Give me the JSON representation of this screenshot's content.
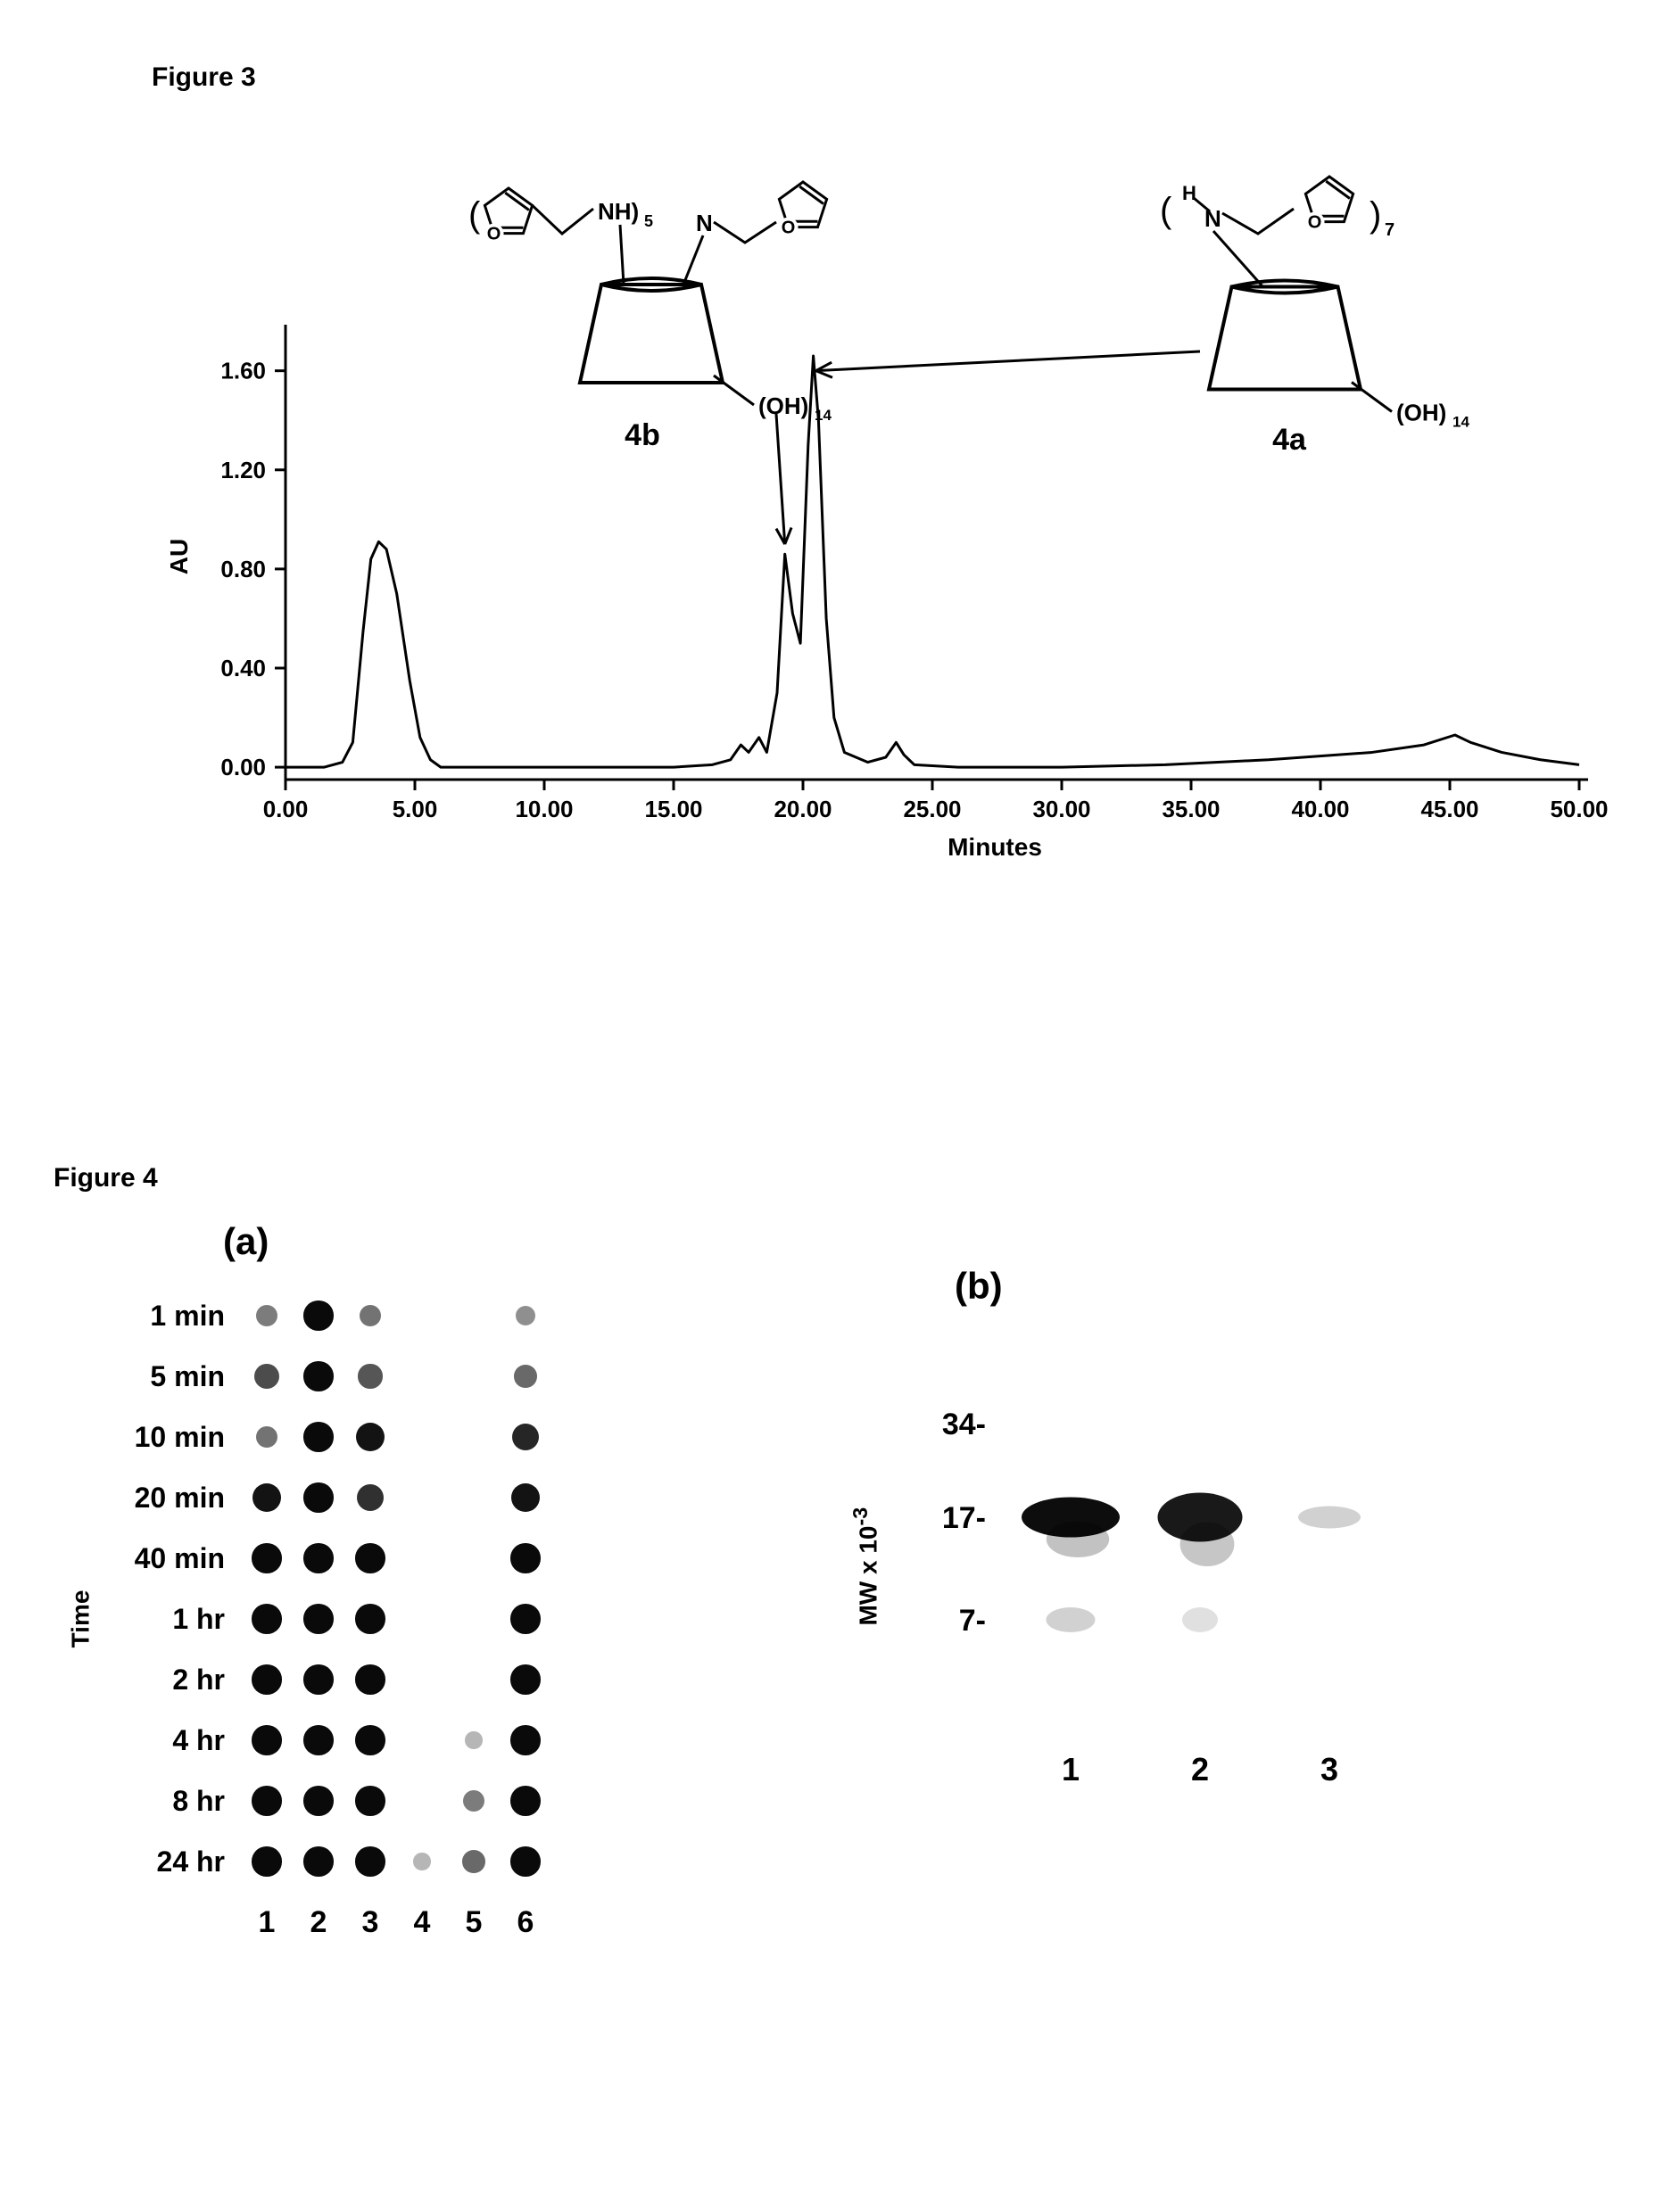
{
  "figure3": {
    "label": "Figure 3",
    "chart": {
      "type": "line",
      "ylabel": "AU",
      "xlabel": "Minutes",
      "xlim": [
        0,
        50
      ],
      "ylim": [
        -0.05,
        1.75
      ],
      "xticks": [
        "0.00",
        "5.00",
        "10.00",
        "15.00",
        "20.00",
        "25.00",
        "30.00",
        "35.00",
        "40.00",
        "45.00",
        "50.00"
      ],
      "yticks": [
        "0.00",
        "0.40",
        "0.80",
        "1.20",
        "1.60"
      ],
      "line_color": "#000000",
      "line_width": 3,
      "background_color": "#ffffff",
      "data": [
        [
          0.0,
          0.0
        ],
        [
          1.5,
          0.0
        ],
        [
          2.2,
          0.02
        ],
        [
          2.6,
          0.1
        ],
        [
          3.0,
          0.55
        ],
        [
          3.3,
          0.84
        ],
        [
          3.6,
          0.91
        ],
        [
          3.9,
          0.88
        ],
        [
          4.3,
          0.7
        ],
        [
          4.8,
          0.35
        ],
        [
          5.2,
          0.12
        ],
        [
          5.6,
          0.03
        ],
        [
          6.0,
          0.0
        ],
        [
          9.0,
          0.0
        ],
        [
          12.0,
          0.0
        ],
        [
          15.0,
          0.0
        ],
        [
          16.5,
          0.01
        ],
        [
          17.2,
          0.03
        ],
        [
          17.6,
          0.09
        ],
        [
          17.9,
          0.06
        ],
        [
          18.3,
          0.12
        ],
        [
          18.6,
          0.06
        ],
        [
          19.0,
          0.3
        ],
        [
          19.3,
          0.86
        ],
        [
          19.6,
          0.62
        ],
        [
          19.9,
          0.5
        ],
        [
          20.2,
          1.3
        ],
        [
          20.4,
          1.66
        ],
        [
          20.6,
          1.4
        ],
        [
          20.9,
          0.6
        ],
        [
          21.2,
          0.2
        ],
        [
          21.6,
          0.06
        ],
        [
          22.5,
          0.02
        ],
        [
          23.2,
          0.04
        ],
        [
          23.6,
          0.1
        ],
        [
          23.9,
          0.05
        ],
        [
          24.3,
          0.01
        ],
        [
          26.0,
          0.0
        ],
        [
          30.0,
          0.0
        ],
        [
          34.0,
          0.01
        ],
        [
          38.0,
          0.03
        ],
        [
          42.0,
          0.06
        ],
        [
          44.0,
          0.09
        ],
        [
          45.2,
          0.13
        ],
        [
          45.8,
          0.1
        ],
        [
          47.0,
          0.06
        ],
        [
          48.5,
          0.03
        ],
        [
          50.0,
          0.01
        ]
      ],
      "annotations": {
        "compound4b": {
          "label": "4b",
          "arrow_to_x": 19.3,
          "arrow_to_y": 0.9,
          "structure": {
            "frag1": "NH)",
            "sub1": "5",
            "frag2": "N",
            "frag3": "(OH)",
            "sub3": "14"
          }
        },
        "compound4a": {
          "label": "4a",
          "arrow_to_x": 20.5,
          "arrow_to_y": 1.6,
          "structure": {
            "frag1": "H",
            "frag2": "N",
            "sub2": "7",
            "frag3": "(OH)",
            "sub3": "14"
          }
        }
      }
    }
  },
  "figure4": {
    "label": "Figure 4",
    "panelA": {
      "label": "(a)",
      "y_axis_title": "Time",
      "row_labels": [
        "1 min",
        "5 min",
        "10 min",
        "20 min",
        "40 min",
        "1 hr",
        "2 hr",
        "4 hr",
        "8 hr",
        "24 hr"
      ],
      "col_labels": [
        "1",
        "2",
        "3",
        "4",
        "5",
        "6"
      ],
      "dot_color": "#000000",
      "dot_max_radius": 17,
      "intensity": [
        [
          0.35,
          0.95,
          0.4,
          0.0,
          0.0,
          0.25
        ],
        [
          0.6,
          0.95,
          0.55,
          0.0,
          0.0,
          0.45
        ],
        [
          0.4,
          0.95,
          0.9,
          0.0,
          0.0,
          0.8
        ],
        [
          0.9,
          0.95,
          0.75,
          0.0,
          0.0,
          0.9
        ],
        [
          0.95,
          0.95,
          0.95,
          0.0,
          0.0,
          0.95
        ],
        [
          0.95,
          0.95,
          0.95,
          0.0,
          0.0,
          0.95
        ],
        [
          0.95,
          0.95,
          0.95,
          0.0,
          0.0,
          0.95
        ],
        [
          0.95,
          0.95,
          0.95,
          0.0,
          0.05,
          0.95
        ],
        [
          0.95,
          0.95,
          0.95,
          0.0,
          0.35,
          0.95
        ],
        [
          0.95,
          0.95,
          0.95,
          0.05,
          0.45,
          0.95
        ]
      ]
    },
    "panelB": {
      "label": "(b)",
      "y_axis_title": "MW x 10",
      "y_axis_title_sup": "-3",
      "mw_labels": [
        "34-",
        "17-",
        "7-"
      ],
      "lane_labels": [
        "1",
        "2",
        "3"
      ],
      "bands": [
        {
          "lane": 1,
          "mw_index": 1,
          "width": 110,
          "height": 45,
          "opacity": 0.95
        },
        {
          "lane": 2,
          "mw_index": 1,
          "width": 95,
          "height": 55,
          "opacity": 0.9
        },
        {
          "lane": 3,
          "mw_index": 1,
          "width": 70,
          "height": 25,
          "opacity": 0.18
        },
        {
          "lane": 1,
          "mw_index": 2,
          "width": 55,
          "height": 28,
          "opacity": 0.18
        },
        {
          "lane": 2,
          "mw_index": 2,
          "width": 40,
          "height": 28,
          "opacity": 0.12
        }
      ],
      "band_color": "#000000"
    }
  }
}
